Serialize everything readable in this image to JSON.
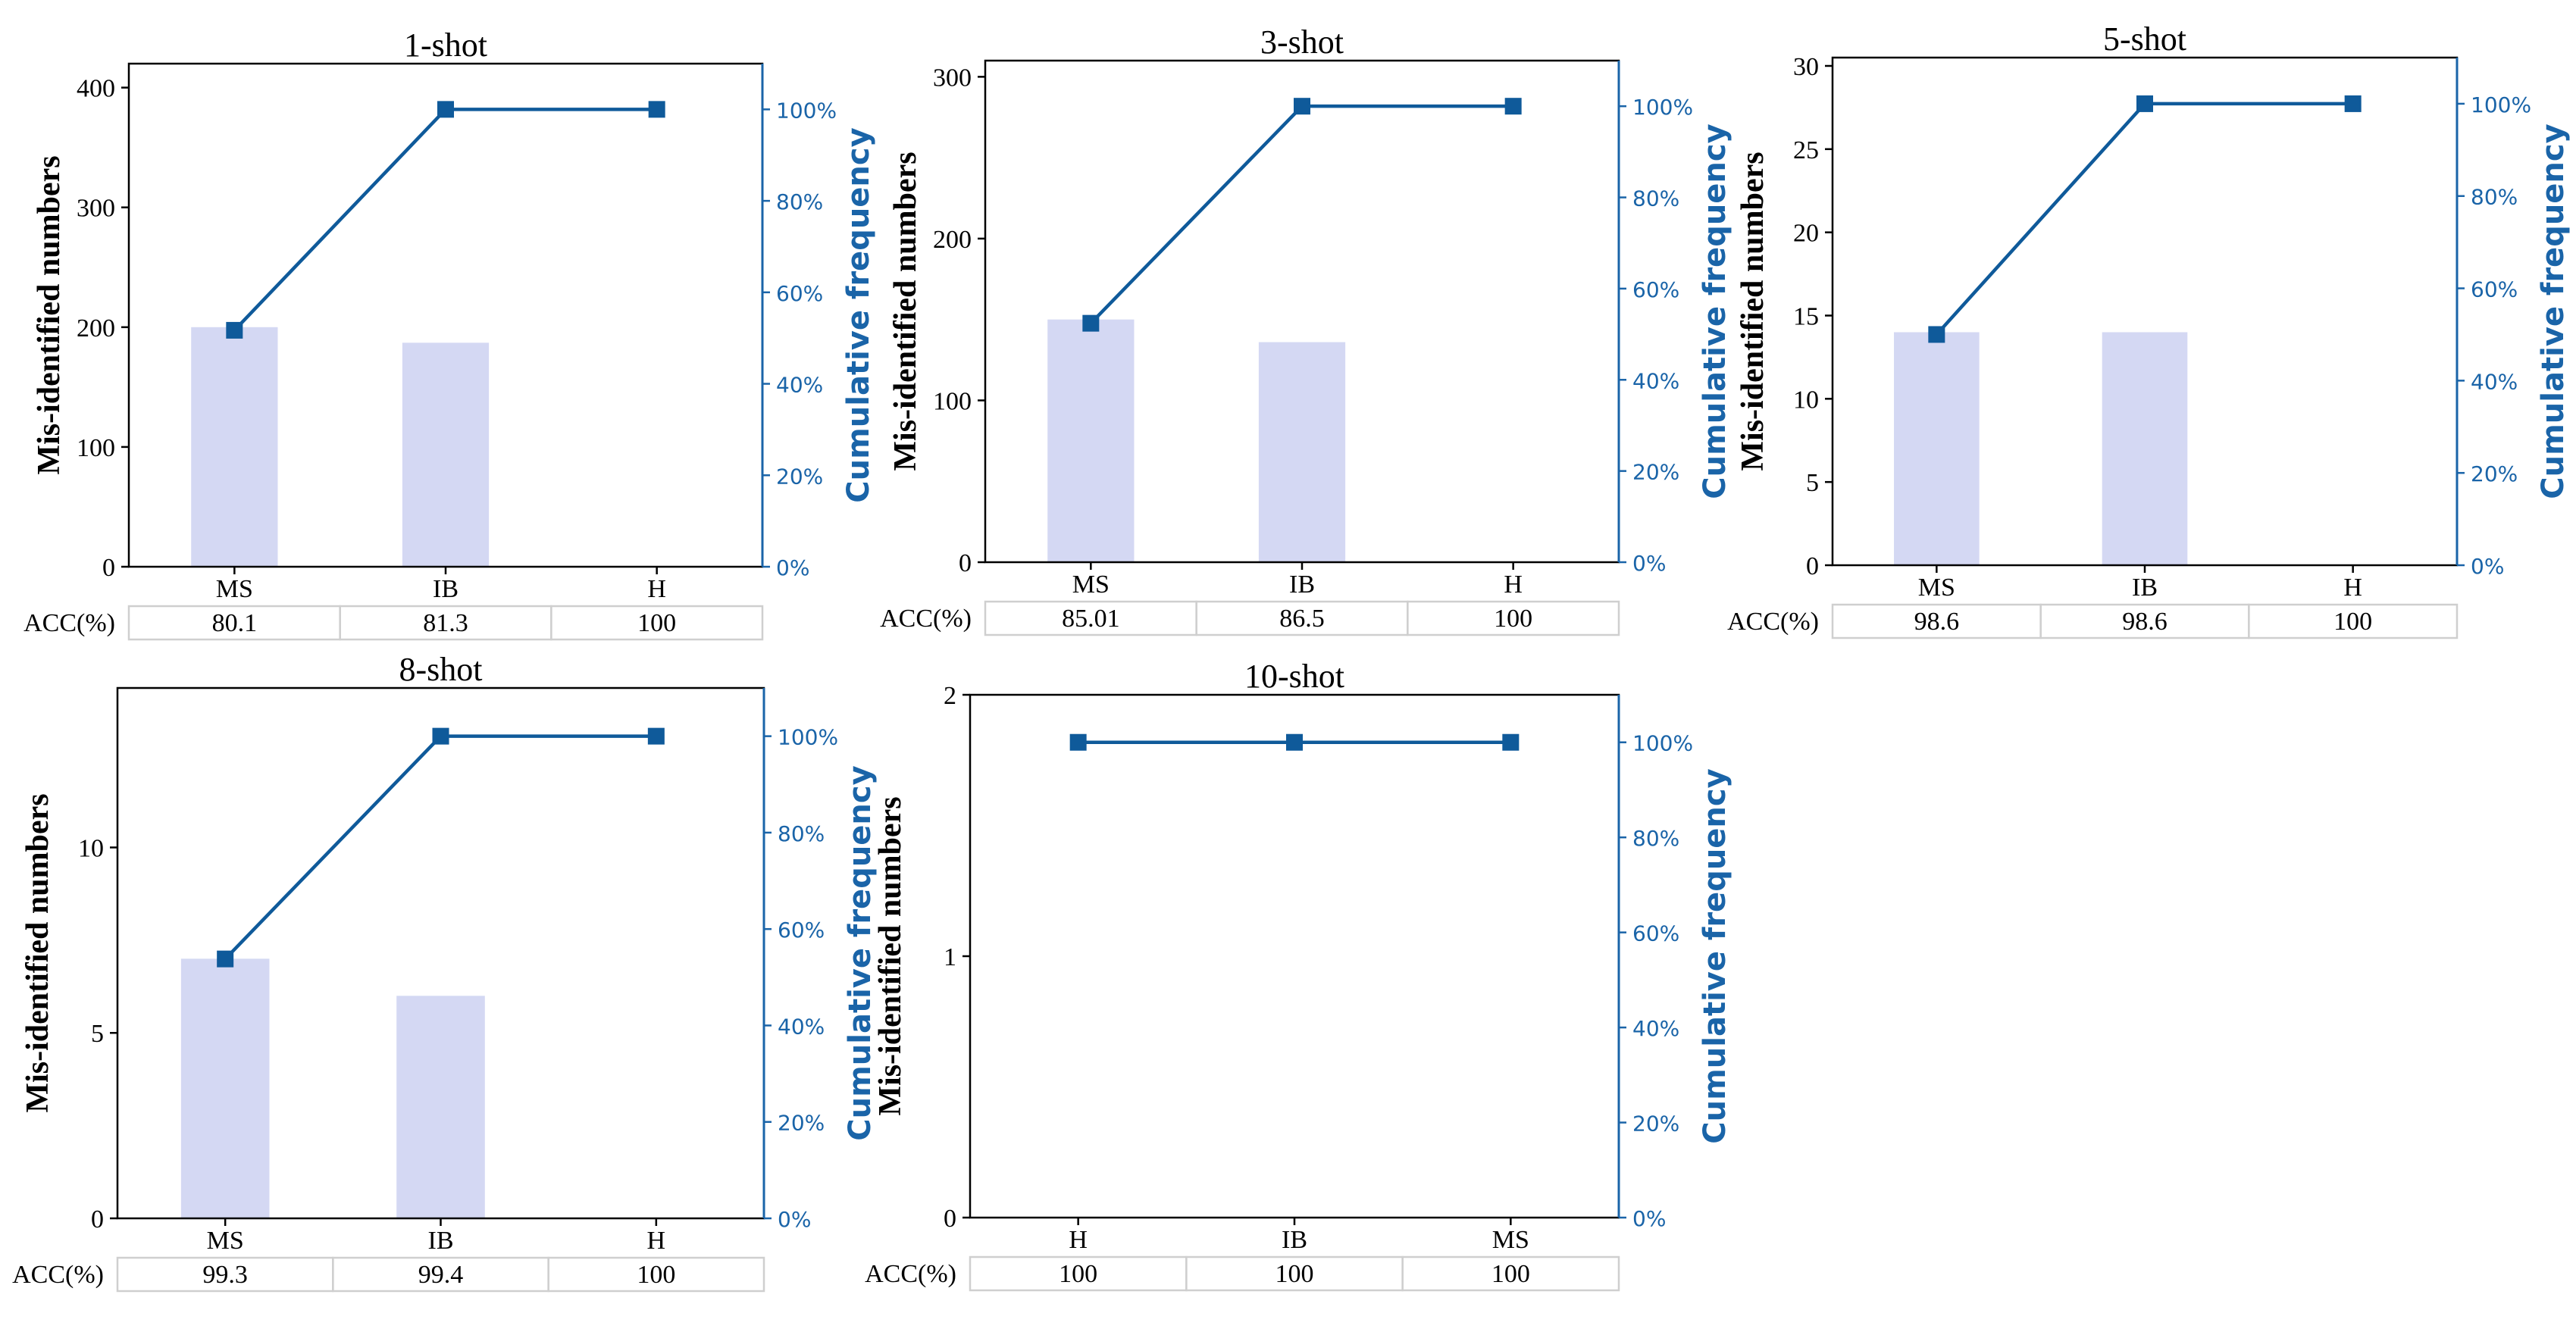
{
  "figure": {
    "colors": {
      "bar": "#d4d8f3",
      "line": "#0f5a9a",
      "right_axis": "#1a64a8",
      "left_axis": "#000000",
      "table_border": "#cfcfcf"
    },
    "table_row_label": "ACC(%)"
  },
  "chart_data": [
    {
      "type": "bar",
      "title": "1-shot",
      "categories": [
        "MS",
        "IB",
        "H"
      ],
      "bar_values": [
        200,
        187,
        0
      ],
      "cumulative_percent": [
        51.7,
        100,
        100
      ],
      "ylabel": "Mis-identified numbers",
      "y2label": "Cumulative frequency",
      "ylim": [
        0,
        420
      ],
      "yticks": [
        0,
        100,
        200,
        300,
        400
      ],
      "y2lim": [
        0,
        110
      ],
      "y2ticks": [
        "0%",
        "20%",
        "40%",
        "60%",
        "80%",
        "100%"
      ],
      "acc_label": "ACC(%)",
      "acc": [
        "80.1",
        "81.3",
        "100"
      ]
    },
    {
      "type": "bar",
      "title": "3-shot",
      "categories": [
        "MS",
        "IB",
        "H"
      ],
      "bar_values": [
        150,
        136,
        0
      ],
      "cumulative_percent": [
        52.4,
        100,
        100
      ],
      "ylabel": "Mis-identified numbers",
      "y2label": "Cumulative frequency",
      "ylim": [
        0,
        310
      ],
      "yticks": [
        0,
        100,
        200,
        300
      ],
      "y2lim": [
        0,
        110
      ],
      "y2ticks": [
        "0%",
        "20%",
        "40%",
        "60%",
        "80%",
        "100%"
      ],
      "acc_label": "ACC(%)",
      "acc": [
        "85.01",
        "86.5",
        "100"
      ]
    },
    {
      "type": "bar",
      "title": "5-shot",
      "categories": [
        "MS",
        "IB",
        "H"
      ],
      "bar_values": [
        14,
        14,
        0
      ],
      "cumulative_percent": [
        50,
        100,
        100
      ],
      "ylabel": "Mis-identified numbers",
      "y2label": "Cumulative frequency",
      "ylim": [
        0,
        30.5
      ],
      "yticks": [
        0,
        5,
        10,
        15,
        20,
        25,
        30
      ],
      "y2lim": [
        0,
        110
      ],
      "y2ticks": [
        "0%",
        "20%",
        "40%",
        "60%",
        "80%",
        "100%"
      ],
      "acc_label": "ACC(%)",
      "acc": [
        "98.6",
        "98.6",
        "100"
      ]
    },
    {
      "type": "bar",
      "title": "8-shot",
      "categories": [
        "MS",
        "IB",
        "H"
      ],
      "bar_values": [
        7,
        6,
        0
      ],
      "cumulative_percent": [
        53.8,
        100,
        100
      ],
      "ylabel": "Mis-identified numbers",
      "y2label": "Cumulative frequency",
      "ylim": [
        0,
        14.3
      ],
      "yticks": [
        0,
        5,
        10
      ],
      "y2lim": [
        0,
        110
      ],
      "y2ticks": [
        "0%",
        "20%",
        "40%",
        "60%",
        "80%",
        "100%"
      ],
      "acc_label": "ACC(%)",
      "acc": [
        "99.3",
        "99.4",
        "100"
      ]
    },
    {
      "type": "bar",
      "title": "10-shot",
      "categories": [
        "H",
        "IB",
        "MS"
      ],
      "bar_values": [
        0,
        0,
        0
      ],
      "cumulative_percent": [
        100,
        100,
        100
      ],
      "ylabel": "Mis-identified numbers",
      "y2label": "Cumulative frequency",
      "ylim": [
        0,
        2
      ],
      "yticks": [
        0,
        1,
        2
      ],
      "y2lim": [
        0,
        110
      ],
      "y2ticks": [
        "0%",
        "20%",
        "40%",
        "60%",
        "80%",
        "100%"
      ],
      "acc_label": "ACC(%)",
      "acc": [
        "100",
        "100",
        "100"
      ]
    }
  ]
}
